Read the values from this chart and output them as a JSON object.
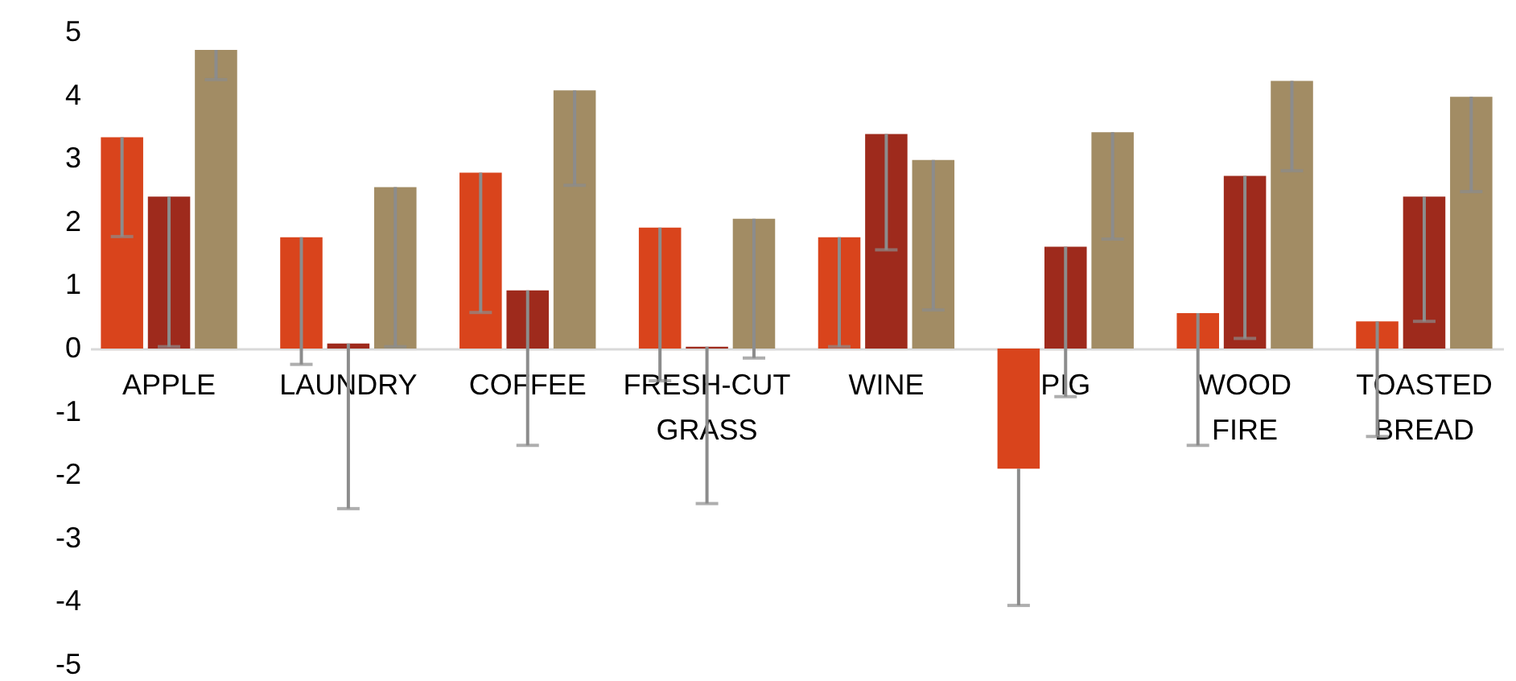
{
  "chart_data": {
    "type": "bar",
    "categories": [
      "APPLE",
      "LAUNDRY",
      "COFFEE",
      "FRESH-CUT GRASS",
      "WINE",
      "PIG",
      "WOOD FIRE",
      "TOASTED BREAD"
    ],
    "series": [
      {
        "color": "#d9441c",
        "values": [
          3.34,
          1.76,
          2.78,
          1.91,
          1.76,
          -1.9,
          0.56,
          0.43
        ],
        "errors": [
          [
            1.77,
            3.34
          ],
          [
            -0.25,
            1.76
          ],
          [
            0.57,
            2.78
          ],
          [
            -0.51,
            1.91
          ],
          [
            0.03,
            1.76
          ],
          [
            -4.06,
            -1.9
          ],
          [
            -1.53,
            0.56
          ],
          [
            -1.39,
            0.43
          ]
        ]
      },
      {
        "color": "#9e2a1c",
        "values": [
          2.4,
          0.08,
          0.92,
          0.03,
          3.39,
          1.61,
          2.73,
          2.4
        ],
        "errors": [
          [
            0.03,
            2.4
          ],
          [
            -2.53,
            0.08
          ],
          [
            -1.53,
            0.92
          ],
          [
            -2.45,
            0.03
          ],
          [
            1.56,
            3.39
          ],
          [
            -0.76,
            1.61
          ],
          [
            0.16,
            2.73
          ],
          [
            0.43,
            2.4
          ]
        ]
      },
      {
        "color": "#a28c64",
        "values": [
          4.72,
          2.55,
          4.08,
          2.05,
          2.98,
          3.42,
          4.23,
          3.98
        ],
        "errors": [
          [
            4.25,
            4.72
          ],
          [
            0.03,
            2.55
          ],
          [
            2.58,
            4.08
          ],
          [
            -0.15,
            2.05
          ],
          [
            0.61,
            2.98
          ],
          [
            1.73,
            3.42
          ],
          [
            2.81,
            4.23
          ],
          [
            2.48,
            3.98
          ]
        ]
      }
    ],
    "ylim": [
      -5,
      5
    ],
    "yticks": [
      -5,
      -4,
      -3,
      -2,
      -1,
      0,
      1,
      2,
      3,
      4,
      5
    ],
    "grid": false,
    "legend": false
  }
}
